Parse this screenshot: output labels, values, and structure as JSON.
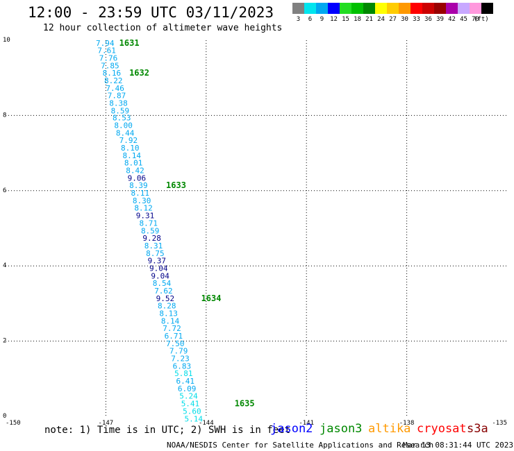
{
  "header": {
    "title": "12:00 - 23:59 UTC 03/11/2023",
    "subtitle": "12 hour collection of altimeter wave heights"
  },
  "legend": {
    "unit": "(ft)",
    "bins": [
      {
        "label": "3",
        "color": "#808080"
      },
      {
        "label": "6",
        "color": "#00e5ee"
      },
      {
        "label": "9",
        "color": "#00a8f0"
      },
      {
        "label": "12",
        "color": "#0000ff"
      },
      {
        "label": "15",
        "color": "#22dd22"
      },
      {
        "label": "18",
        "color": "#00c000"
      },
      {
        "label": "21",
        "color": "#008800"
      },
      {
        "label": "24",
        "color": "#ffff00"
      },
      {
        "label": "27",
        "color": "#ffcc00"
      },
      {
        "label": "30",
        "color": "#ff9900"
      },
      {
        "label": "33",
        "color": "#ff0000"
      },
      {
        "label": "36",
        "color": "#cc0000"
      },
      {
        "label": "39",
        "color": "#990000"
      },
      {
        "label": "42",
        "color": "#aa00aa"
      },
      {
        "label": "45",
        "color": "#c8a8ff"
      },
      {
        "label": "70",
        "color": "#ff99dd"
      },
      {
        "label": "",
        "color": "#000000"
      }
    ]
  },
  "chart_data": {
    "type": "scatter",
    "xlim": [
      -150,
      -135
    ],
    "ylim": [
      0,
      10
    ],
    "x_ticks": [
      "-150",
      "-147",
      "-144",
      "-141",
      "-138",
      "-135"
    ],
    "x_tick_values": [
      -150,
      -147,
      -144,
      -141,
      -138,
      -135
    ],
    "y_ticks": [
      "0",
      "2",
      "4",
      "6",
      "8",
      "10"
    ],
    "y_tick_values": [
      0,
      2,
      4,
      6,
      8,
      10
    ],
    "grid": "dotted",
    "points": [
      {
        "x": -147.3,
        "y": 9.93,
        "label": "7.94",
        "color": "#00a8f0"
      },
      {
        "x": -147.25,
        "y": 9.73,
        "label": "7.61",
        "color": "#00a8f0"
      },
      {
        "x": -147.2,
        "y": 9.53,
        "label": "7.76",
        "color": "#00a8f0"
      },
      {
        "x": -147.15,
        "y": 9.33,
        "label": "7.85",
        "color": "#00a8f0"
      },
      {
        "x": -147.1,
        "y": 9.13,
        "label": "8.16",
        "color": "#00a8f0"
      },
      {
        "x": -147.05,
        "y": 8.93,
        "label": "8.22",
        "color": "#00a8f0"
      },
      {
        "x": -147.0,
        "y": 8.73,
        "label": "7.46",
        "color": "#00a8f0"
      },
      {
        "x": -146.95,
        "y": 8.53,
        "label": "7.87",
        "color": "#00a8f0"
      },
      {
        "x": -146.9,
        "y": 8.33,
        "label": "8.38",
        "color": "#00a8f0"
      },
      {
        "x": -146.85,
        "y": 8.13,
        "label": "8.59",
        "color": "#00a8f0"
      },
      {
        "x": -146.8,
        "y": 7.94,
        "label": "8.53",
        "color": "#00a8f0"
      },
      {
        "x": -146.75,
        "y": 7.74,
        "label": "8.00",
        "color": "#00a8f0"
      },
      {
        "x": -146.7,
        "y": 7.54,
        "label": "8.44",
        "color": "#00a8f0"
      },
      {
        "x": -146.6,
        "y": 7.34,
        "label": "7.92",
        "color": "#00a8f0"
      },
      {
        "x": -146.55,
        "y": 7.14,
        "label": "8.10",
        "color": "#00a8f0"
      },
      {
        "x": -146.5,
        "y": 6.94,
        "label": "8.14",
        "color": "#00a8f0"
      },
      {
        "x": -146.45,
        "y": 6.74,
        "label": "8.01",
        "color": "#00a8f0"
      },
      {
        "x": -146.4,
        "y": 6.54,
        "label": "8.42",
        "color": "#00a8f0"
      },
      {
        "x": -146.35,
        "y": 6.34,
        "label": "9.06",
        "color": "#000088"
      },
      {
        "x": -146.3,
        "y": 6.14,
        "label": "8.39",
        "color": "#00a8f0"
      },
      {
        "x": -146.25,
        "y": 5.94,
        "label": "8.11",
        "color": "#00a8f0"
      },
      {
        "x": -146.2,
        "y": 5.74,
        "label": "8.30",
        "color": "#00a8f0"
      },
      {
        "x": -146.15,
        "y": 5.54,
        "label": "8.12",
        "color": "#00a8f0"
      },
      {
        "x": -146.1,
        "y": 5.34,
        "label": "9.31",
        "color": "#000088"
      },
      {
        "x": -146.0,
        "y": 5.14,
        "label": "8.71",
        "color": "#00a8f0"
      },
      {
        "x": -145.95,
        "y": 4.94,
        "label": "8.59",
        "color": "#00a8f0"
      },
      {
        "x": -145.9,
        "y": 4.74,
        "label": "9.28",
        "color": "#000088"
      },
      {
        "x": -145.85,
        "y": 4.54,
        "label": "8.31",
        "color": "#00a8f0"
      },
      {
        "x": -145.8,
        "y": 4.34,
        "label": "8.75",
        "color": "#00a8f0"
      },
      {
        "x": -145.75,
        "y": 4.14,
        "label": "9.37",
        "color": "#000088"
      },
      {
        "x": -145.7,
        "y": 3.94,
        "label": "9.04",
        "color": "#000088"
      },
      {
        "x": -145.65,
        "y": 3.74,
        "label": "9.04",
        "color": "#000088"
      },
      {
        "x": -145.6,
        "y": 3.54,
        "label": "8.54",
        "color": "#00a8f0"
      },
      {
        "x": -145.55,
        "y": 3.34,
        "label": "7.62",
        "color": "#00a8f0"
      },
      {
        "x": -145.5,
        "y": 3.14,
        "label": "9.52",
        "color": "#000088"
      },
      {
        "x": -145.45,
        "y": 2.94,
        "label": "8.28",
        "color": "#00a8f0"
      },
      {
        "x": -145.4,
        "y": 2.74,
        "label": "8.13",
        "color": "#00a8f0"
      },
      {
        "x": -145.35,
        "y": 2.54,
        "label": "8.14",
        "color": "#00a8f0"
      },
      {
        "x": -145.3,
        "y": 2.34,
        "label": "7.72",
        "color": "#00a8f0"
      },
      {
        "x": -145.25,
        "y": 2.14,
        "label": "6.71",
        "color": "#00a8f0"
      },
      {
        "x": -145.2,
        "y": 1.94,
        "label": "7.50",
        "color": "#00a8f0"
      },
      {
        "x": -145.1,
        "y": 1.74,
        "label": "7.79",
        "color": "#00a8f0"
      },
      {
        "x": -145.05,
        "y": 1.54,
        "label": "7.23",
        "color": "#00a8f0"
      },
      {
        "x": -145.0,
        "y": 1.34,
        "label": "6.83",
        "color": "#00a8f0"
      },
      {
        "x": -144.95,
        "y": 1.14,
        "label": "5.81",
        "color": "#00dde8"
      },
      {
        "x": -144.9,
        "y": 0.94,
        "label": "6.41",
        "color": "#00a8f0"
      },
      {
        "x": -144.85,
        "y": 0.74,
        "label": "6.09",
        "color": "#00a8f0"
      },
      {
        "x": -144.8,
        "y": 0.54,
        "label": "5.24",
        "color": "#00dde8"
      },
      {
        "x": -144.75,
        "y": 0.34,
        "label": "5.41",
        "color": "#00dde8"
      },
      {
        "x": -144.7,
        "y": 0.14,
        "label": "5.60",
        "color": "#00dde8"
      },
      {
        "x": -144.65,
        "y": -0.06,
        "label": "5.14",
        "color": "#00dde8"
      }
    ],
    "time_labels": [
      {
        "x": -146.6,
        "y": 9.93,
        "label": "1631"
      },
      {
        "x": -146.3,
        "y": 9.13,
        "label": "1632"
      },
      {
        "x": -145.2,
        "y": 6.14,
        "label": "1633"
      },
      {
        "x": -144.15,
        "y": 3.14,
        "label": "1634"
      },
      {
        "x": -143.15,
        "y": 0.34,
        "label": "1635"
      }
    ],
    "time_label_color": "#008800"
  },
  "footer": {
    "note": "note: 1) Time is in UTC; 2) SWH is in feet",
    "satellites": [
      {
        "name": "jason2",
        "color": "#0000ff"
      },
      {
        "name": "jason3",
        "color": "#008800"
      },
      {
        "name": "altika",
        "color": "#ff9900"
      },
      {
        "name": "cryosat",
        "color": "#ff0000"
      },
      {
        "name": "s3a",
        "color": "#880000"
      }
    ],
    "credit": "NOAA/NESDIS Center for Satellite Applications and Research",
    "timestamp": "Mar 13 08:31:44 UTC 2023"
  }
}
